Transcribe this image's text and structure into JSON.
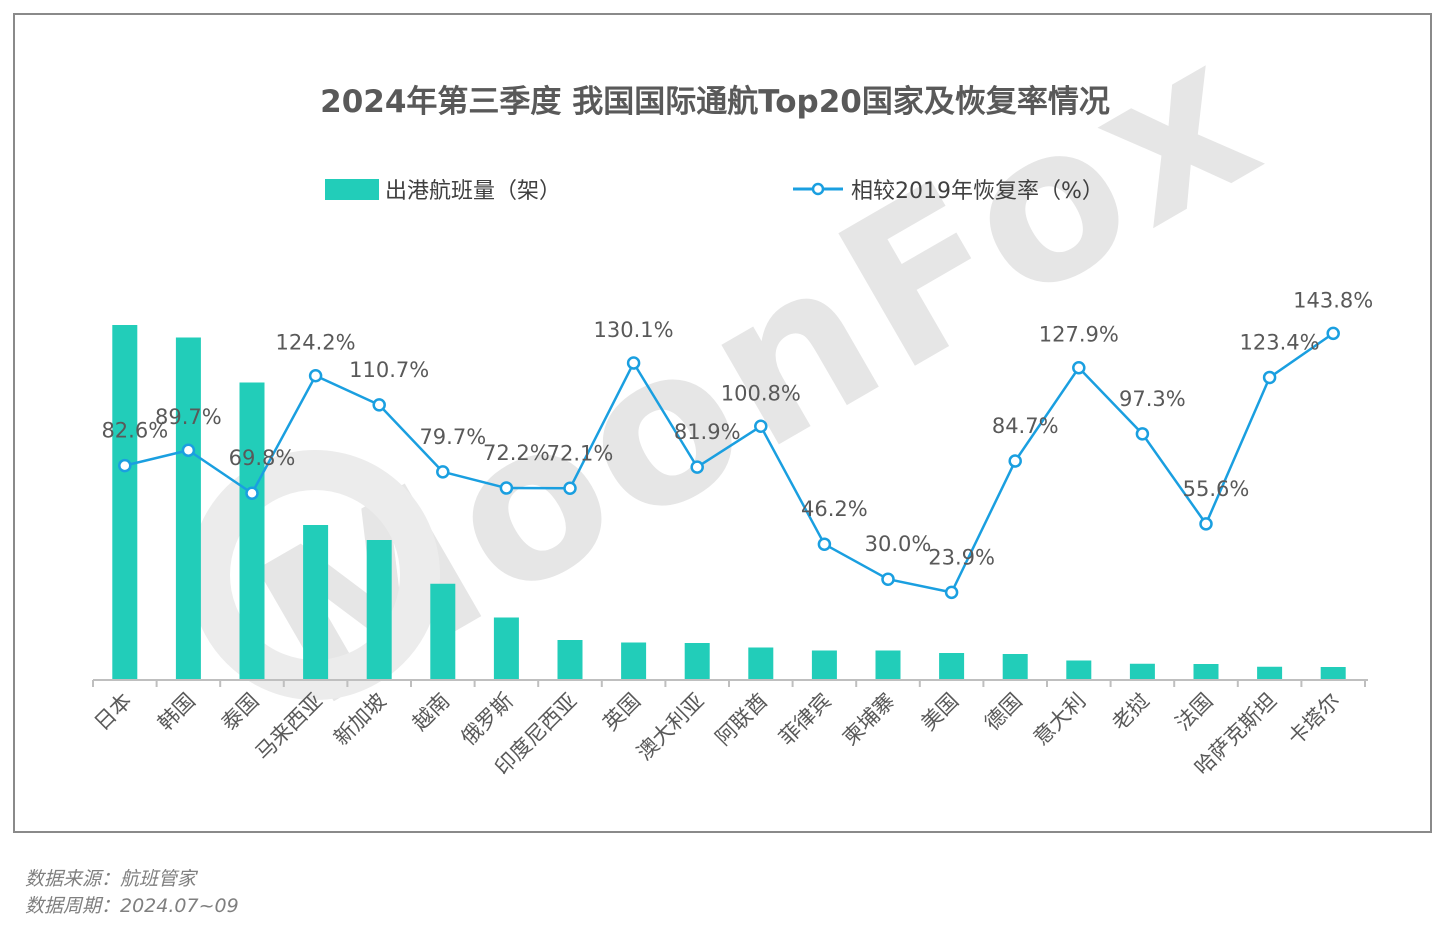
{
  "chart_data": {
    "type": "bar",
    "title": "2024年第三季度 我国国际通航Top20国家及恢复率情况",
    "categories": [
      "日本",
      "韩国",
      "泰国",
      "马来西亚",
      "新加坡",
      "越南",
      "俄罗斯",
      "印度尼西亚",
      "英国",
      "澳大利亚",
      "阿联酋",
      "菲律宾",
      "柬埔寨",
      "美国",
      "德国",
      "意大利",
      "老挝",
      "法国",
      "哈萨克斯坦",
      "卡塔尔"
    ],
    "series": [
      {
        "name": "出港航班量（架）",
        "type": "bar",
        "color": "#22cdb9",
        "values": [
          14200,
          13700,
          11900,
          6200,
          5600,
          3850,
          2500,
          1600,
          1500,
          1480,
          1300,
          1180,
          1180,
          1080,
          1040,
          780,
          650,
          640,
          530,
          520
        ]
      },
      {
        "name": "相较2019年恢复率（%）",
        "type": "line",
        "color": "#1a9fe0",
        "values": [
          82.6,
          89.7,
          69.8,
          124.2,
          110.7,
          79.7,
          72.2,
          72.1,
          130.1,
          81.9,
          100.8,
          46.2,
          30.0,
          23.9,
          84.7,
          127.9,
          97.3,
          55.6,
          123.4,
          143.8
        ],
        "labels": [
          "82.6%",
          "89.7%",
          "69.8%",
          "124.2%",
          "110.7%",
          "79.7%",
          "72.2%",
          "72.1%",
          "130.1%",
          "81.9%",
          "100.8%",
          "46.2%",
          "30.0%",
          "23.9%",
          "84.7%",
          "127.9%",
          "97.3%",
          "55.6%",
          "123.4%",
          "143.8%"
        ]
      }
    ],
    "legend": "top",
    "grid": false,
    "bar_ylim": [
      0,
      14200
    ],
    "line_ylim": [
      0,
      143.8
    ]
  },
  "watermark": "MoonFox",
  "footer": {
    "source": "数据来源：航班管家",
    "period": "数据周期：2024.07~09"
  }
}
